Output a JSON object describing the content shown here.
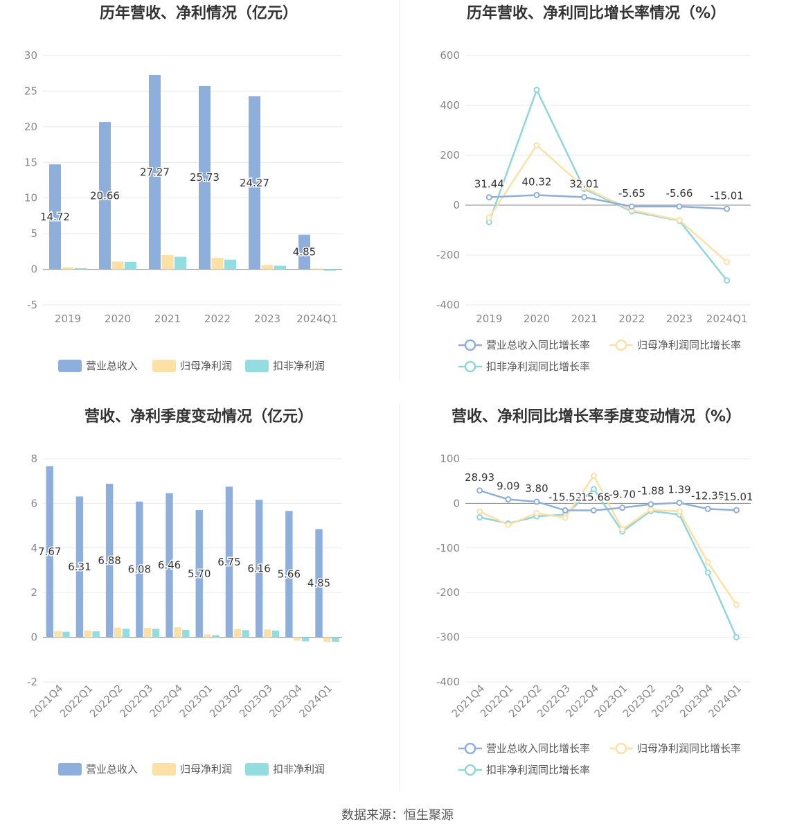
{
  "colors": {
    "revenue": "#8eaedb",
    "net_profit": "#fde0a6",
    "deducted": "#93dce0",
    "revenue_line": "#8eaedb",
    "net_line": "#fde0a6",
    "deducted_line": "#8fd6db"
  },
  "source": "数据来源：恒生聚源",
  "chart_data": [
    {
      "type": "bar",
      "title": "历年营收、净利情况（亿元）",
      "categories": [
        "2019",
        "2020",
        "2021",
        "2022",
        "2023",
        "2024Q1"
      ],
      "series": [
        {
          "name": "营业总收入",
          "values": [
            14.72,
            20.66,
            27.27,
            25.73,
            24.27,
            4.85
          ],
          "labels": [
            "14.72",
            "20.66",
            "27.27",
            "25.73",
            "24.27",
            "4.85"
          ]
        },
        {
          "name": "归母净利润",
          "values": [
            0.3,
            1.1,
            2.0,
            1.6,
            0.6,
            0.1
          ]
        },
        {
          "name": "扣非净利润",
          "values": [
            0.15,
            1.05,
            1.75,
            1.35,
            0.5,
            -0.2
          ]
        }
      ],
      "yticks": [
        "30",
        "25",
        "20",
        "15",
        "10",
        "5",
        "0",
        "-5"
      ],
      "ylim": [
        -5,
        30
      ],
      "legend": "bottom"
    },
    {
      "type": "line",
      "title": "历年营收、净利同比增长率情况（%）",
      "categories": [
        "2019",
        "2020",
        "2021",
        "2022",
        "2023",
        "2024Q1"
      ],
      "series": [
        {
          "name": "营业总收入同比增长率",
          "values": [
            31.44,
            40.32,
            32.01,
            -5.65,
            -5.66,
            -15.01
          ],
          "labels": [
            "31.44",
            "40.32",
            "32.01",
            "-5.65",
            "-5.66",
            "-15.01"
          ]
        },
        {
          "name": "归母净利润同比增长率",
          "values": [
            -50,
            240,
            70,
            -20,
            -60,
            -228
          ]
        },
        {
          "name": "扣非净利润同比增长率",
          "values": [
            -68,
            462,
            65,
            -25,
            -62,
            -302
          ]
        }
      ],
      "yticks": [
        "600",
        "400",
        "200",
        "0",
        "-200",
        "-400"
      ],
      "ylim": [
        -400,
        600
      ],
      "legend": "bottom"
    },
    {
      "type": "bar",
      "title": "营收、净利季度变动情况（亿元）",
      "categories": [
        "2021Q4",
        "2022Q1",
        "2022Q2",
        "2022Q3",
        "2022Q4",
        "2023Q1",
        "2023Q2",
        "2023Q3",
        "2023Q4",
        "2024Q1"
      ],
      "series": [
        {
          "name": "营业总收入",
          "values": [
            7.67,
            6.31,
            6.88,
            6.08,
            6.46,
            5.7,
            6.75,
            6.16,
            5.66,
            4.85
          ],
          "labels": [
            "7.67",
            "6.31",
            "6.88",
            "6.08",
            "6.46",
            "5.70",
            "6.75",
            "6.16",
            "5.66",
            "4.85"
          ]
        },
        {
          "name": "归母净利润",
          "values": [
            0.28,
            0.3,
            0.43,
            0.42,
            0.45,
            0.13,
            0.36,
            0.35,
            -0.15,
            -0.2
          ]
        },
        {
          "name": "扣非净利润",
          "values": [
            0.25,
            0.27,
            0.38,
            0.38,
            0.33,
            0.1,
            0.32,
            0.3,
            -0.18,
            -0.2
          ]
        }
      ],
      "yticks": [
        "8",
        "6",
        "4",
        "2",
        "0",
        "-2"
      ],
      "ylim": [
        -2,
        8
      ],
      "legend": "bottom"
    },
    {
      "type": "line",
      "title": "营收、净利同比增长率季度变动情况（%）",
      "categories": [
        "2021Q4",
        "2022Q1",
        "2022Q2",
        "2022Q3",
        "2022Q4",
        "2023Q1",
        "2023Q2",
        "2023Q3",
        "2023Q4",
        "2024Q1"
      ],
      "series": [
        {
          "name": "营业总收入同比增长率",
          "values": [
            28.93,
            9.09,
            3.8,
            -15.52,
            -15.68,
            -9.7,
            -1.88,
            1.39,
            -12.35,
            -15.01
          ],
          "labels": [
            "28.93",
            "9.09",
            "3.80",
            "-15.52",
            "-15.68",
            "-9.70",
            "-1.88",
            "1.39",
            "-12.35",
            "-15.01"
          ]
        },
        {
          "name": "归母净利润同比增长率",
          "values": [
            -18,
            -48,
            -22,
            -32,
            62,
            -58,
            -14,
            -18,
            -132,
            -227
          ]
        },
        {
          "name": "扣非净利润同比增长率",
          "values": [
            -31,
            -45,
            -29,
            -25,
            32,
            -63,
            -17,
            -25,
            -155,
            -300
          ]
        }
      ],
      "yticks": [
        "100",
        "0",
        "-100",
        "-200",
        "-300",
        "-400"
      ],
      "ylim": [
        -400,
        100
      ],
      "legend": "bottom"
    }
  ]
}
